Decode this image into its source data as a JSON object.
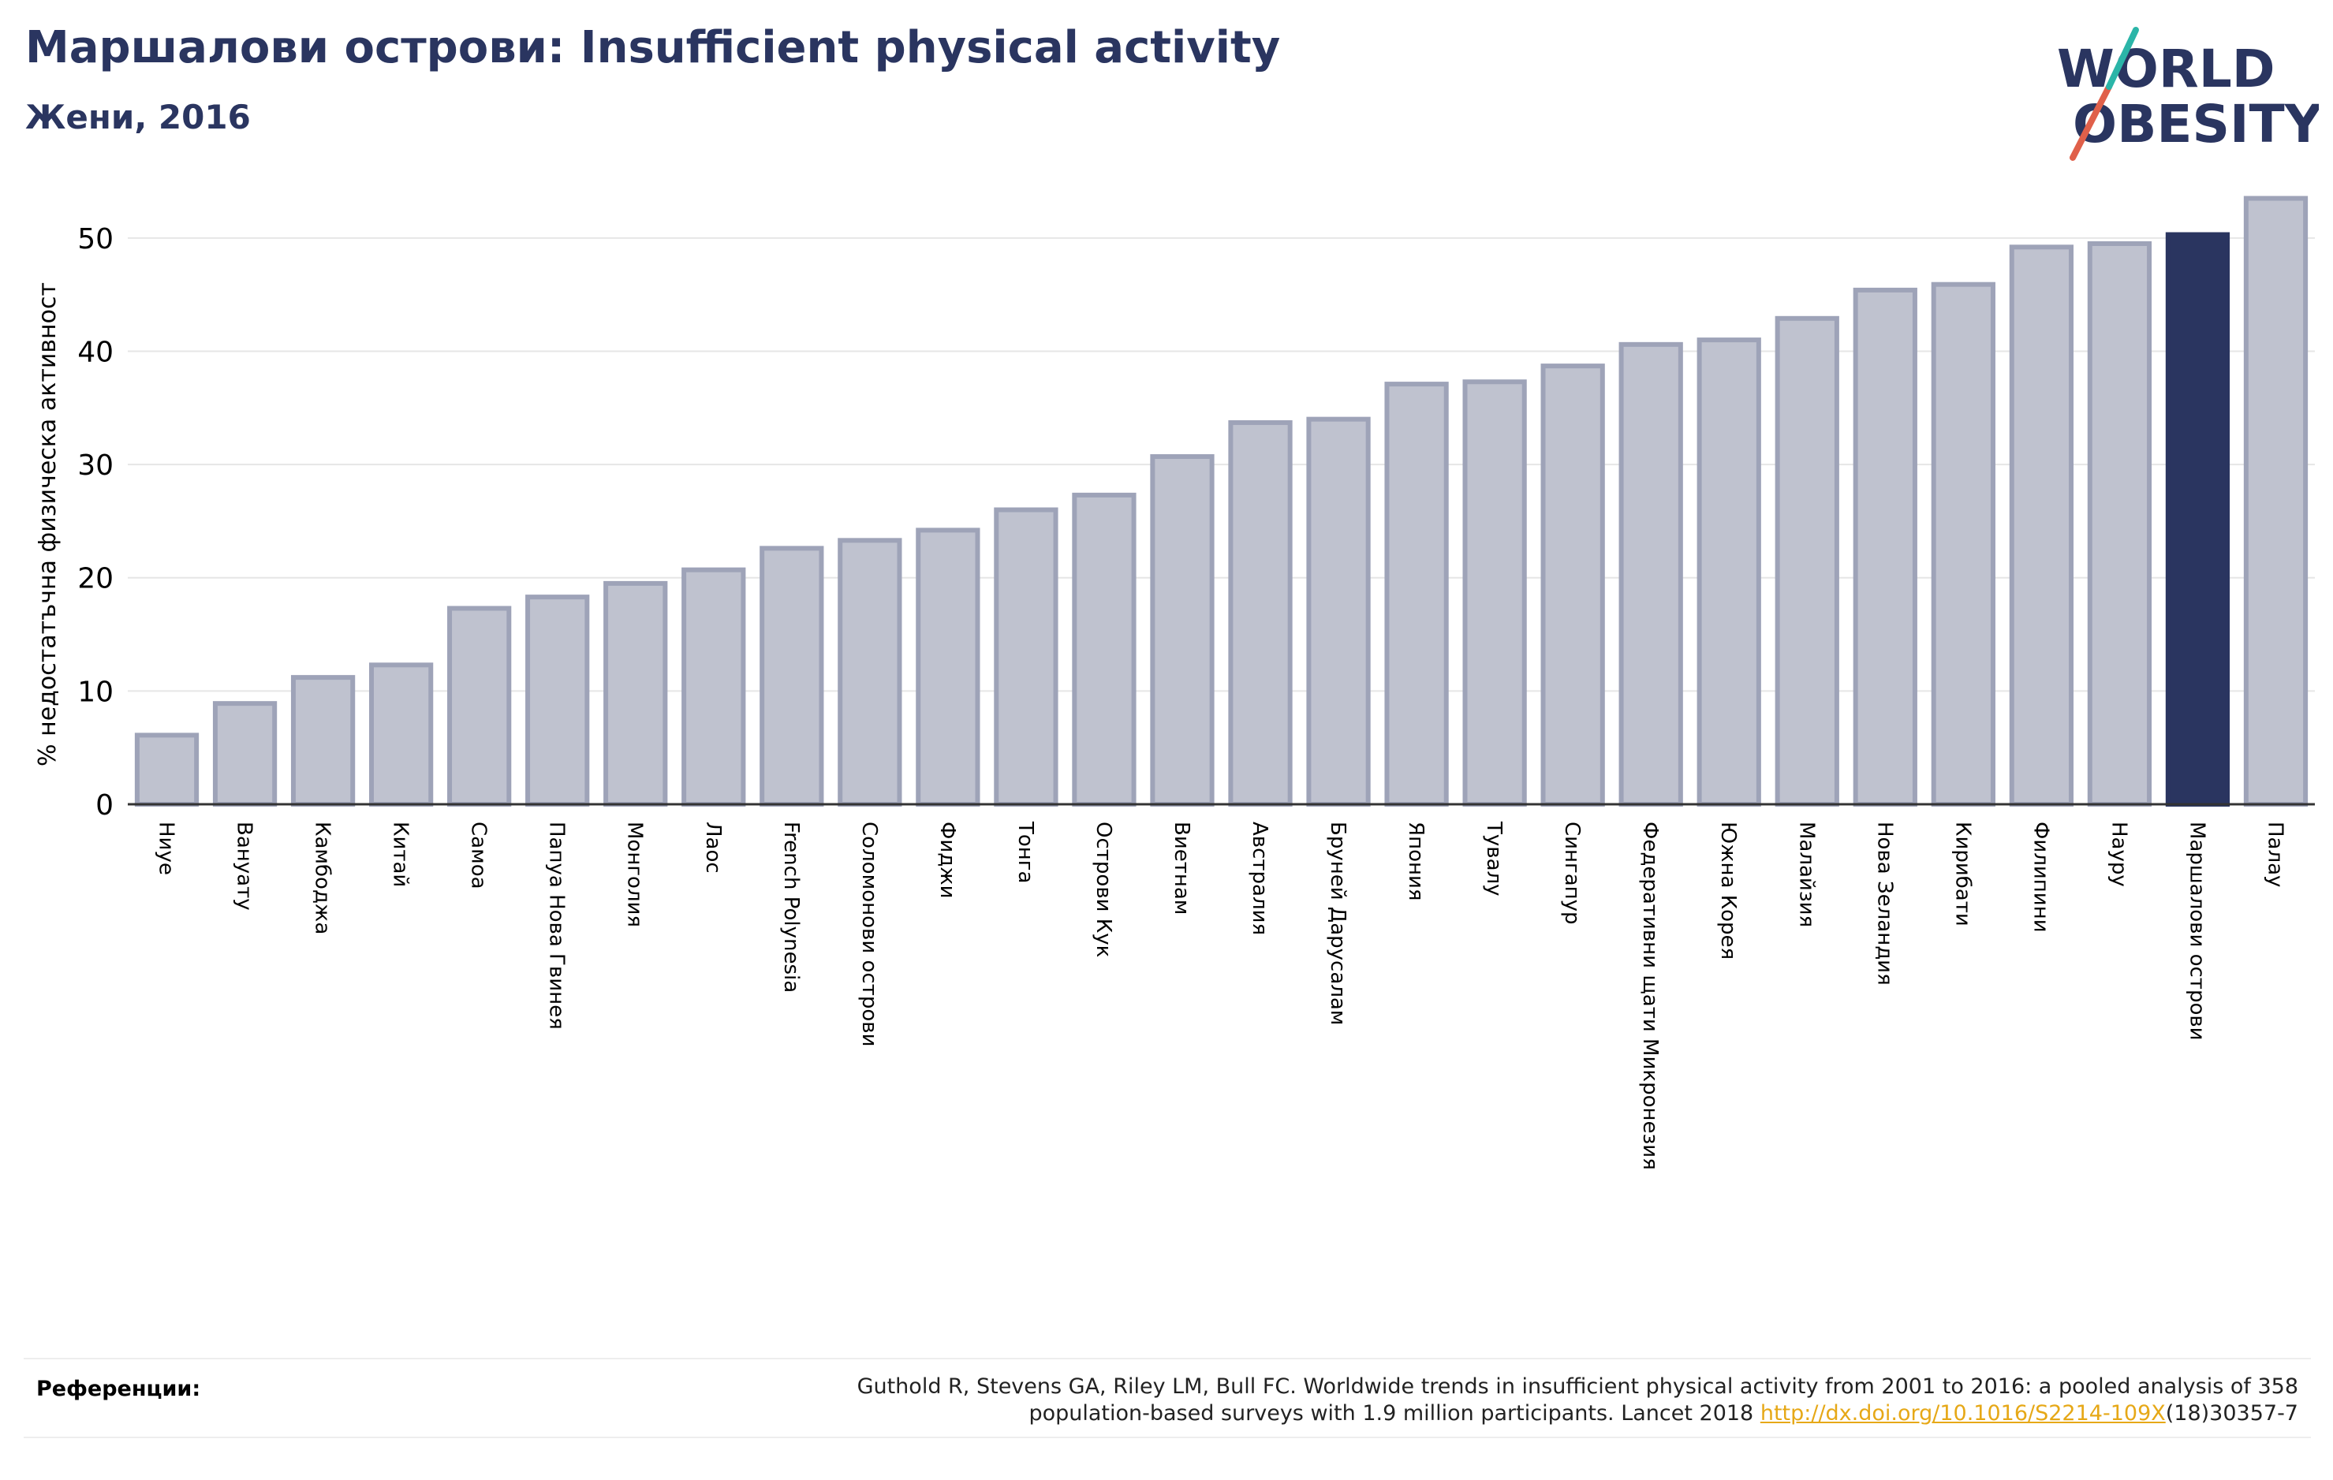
{
  "header": {
    "title": "Маршалови острови: Insufficient physical activity",
    "subtitle": "Жени, 2016"
  },
  "logo": {
    "line1": "WORLD",
    "line2": "OBESITY"
  },
  "colors": {
    "bar_fill": "#bfc2cf",
    "bar_stroke": "#9ea3b8",
    "highlight": "#2a3560",
    "title": "#2a3560",
    "link": "#e6a817"
  },
  "chart_data": {
    "type": "bar",
    "title": "Маршалови острови: Insufficient physical activity",
    "subtitle": "Жени, 2016",
    "ylabel": "% недостатъчна физическа активност",
    "xlabel": "",
    "ylim": [
      0,
      55
    ],
    "yticks": [
      0,
      10,
      20,
      30,
      40,
      50
    ],
    "grid": true,
    "highlight": "Маршалови острови",
    "categories": [
      "Ниуе",
      "Вануату",
      "Камбоджа",
      "Китай",
      "Самоа",
      "Папуа Нова Гвинея",
      "Монголия",
      "Лаос",
      "French Polynesia",
      "Соломонови острови",
      "Фиджи",
      "Тонга",
      "Острови Кук",
      "Виетнам",
      "Австралия",
      "Бруней Дарусалам",
      "Япония",
      "Тувалу",
      "Сингапур",
      "Федеративни щати Микронезия",
      "Южна Корея",
      "Малайзия",
      "Нова Зеландия",
      "Кирибати",
      "Филипини",
      "Науру",
      "Маршалови острови",
      "Палау"
    ],
    "values": [
      6.1,
      8.9,
      11.2,
      12.3,
      17.3,
      18.3,
      19.5,
      20.7,
      22.6,
      23.3,
      24.2,
      26.0,
      27.3,
      30.7,
      33.7,
      34.0,
      37.1,
      37.3,
      38.7,
      40.6,
      41.0,
      42.9,
      45.4,
      45.9,
      49.2,
      49.5,
      50.3,
      53.5
    ]
  },
  "references": {
    "label": "Референции:",
    "line1": "Guthold R, Stevens GA, Riley LM, Bull FC. Worldwide trends in insufficient physical activity from 2001 to 2016: a pooled analysis of 358",
    "line2_prefix": "population-based surveys with 1.9 million participants. Lancet 2018 ",
    "link": "http://dx.doi.org/10.1016/S2214-109X",
    "line2_suffix": "(18)30357-7"
  }
}
